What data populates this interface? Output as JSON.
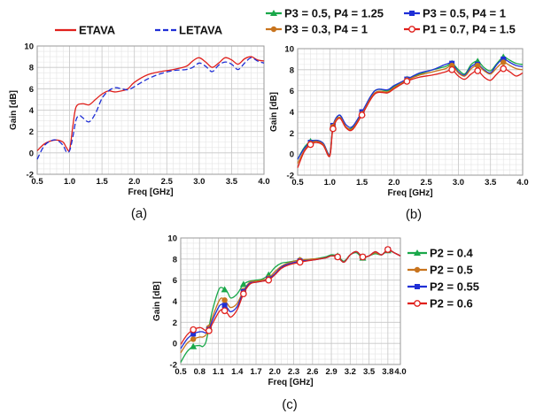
{
  "colors": {
    "red": "#e0201c",
    "blue": "#1f2fd6",
    "green": "#1aa84a",
    "orange": "#c8741e",
    "navy": "#1a1f9c"
  },
  "chart_data": [
    {
      "type": "line",
      "panel": "(a)",
      "xlabel": "Freq [GHz]",
      "ylabel": "Gain [dB]",
      "xlim": [
        0.5,
        4.0
      ],
      "ylim": [
        -2,
        10
      ],
      "xticks": [
        "0.5",
        "1.0",
        "1.5",
        "2.0",
        "2.5",
        "3.0",
        "3.5",
        "4.0"
      ],
      "yticks": [
        "-2",
        "0",
        "2",
        "4",
        "6",
        "8",
        "10"
      ],
      "grid": true,
      "legend_position": "top (above plot)",
      "series": [
        {
          "name": "ETAVA",
          "color": "#e0201c",
          "dash": "solid",
          "x": [
            0.5,
            0.6,
            0.7,
            0.8,
            0.9,
            0.95,
            1.0,
            1.05,
            1.1,
            1.2,
            1.3,
            1.4,
            1.5,
            1.6,
            1.7,
            1.8,
            1.9,
            2.0,
            2.2,
            2.4,
            2.6,
            2.8,
            2.9,
            3.0,
            3.1,
            3.2,
            3.3,
            3.4,
            3.5,
            3.6,
            3.7,
            3.8,
            3.9,
            4.0
          ],
          "y": [
            0.2,
            0.8,
            1.1,
            1.2,
            1.0,
            0.5,
            0.3,
            2.5,
            4.3,
            4.6,
            4.5,
            5.0,
            5.5,
            5.8,
            5.7,
            5.8,
            6.0,
            6.6,
            7.3,
            7.6,
            7.8,
            8.1,
            8.6,
            8.9,
            8.5,
            8.0,
            8.4,
            8.9,
            8.7,
            8.3,
            8.8,
            9.0,
            8.7,
            8.6
          ]
        },
        {
          "name": "LETAVA",
          "color": "#1f2fd6",
          "dash": "dashed",
          "x": [
            0.5,
            0.6,
            0.7,
            0.8,
            0.9,
            0.95,
            1.0,
            1.05,
            1.1,
            1.15,
            1.2,
            1.3,
            1.4,
            1.5,
            1.6,
            1.7,
            1.8,
            1.9,
            2.0,
            2.2,
            2.4,
            2.6,
            2.8,
            2.9,
            3.0,
            3.1,
            3.2,
            3.3,
            3.4,
            3.5,
            3.6,
            3.7,
            3.8,
            3.9,
            4.0
          ],
          "y": [
            -0.6,
            0.6,
            1.1,
            1.2,
            0.7,
            0.1,
            0.2,
            1.5,
            3.1,
            3.5,
            3.3,
            2.9,
            3.7,
            5.1,
            5.8,
            6.1,
            6.0,
            5.9,
            6.2,
            6.9,
            7.4,
            7.7,
            7.8,
            8.0,
            8.4,
            8.1,
            7.6,
            8.2,
            8.5,
            8.3,
            7.8,
            8.4,
            8.9,
            8.6,
            8.4
          ]
        }
      ]
    },
    {
      "type": "line",
      "panel": "(b)",
      "xlabel": "Freq [GHz]",
      "ylabel": "Gain [dB]",
      "xlim": [
        0.5,
        4.0
      ],
      "ylim": [
        -2,
        10
      ],
      "xticks": [
        "0.5",
        "1.0",
        "1.5",
        "2.0",
        "2.5",
        "3.0",
        "3.5",
        "4.0"
      ],
      "yticks": [
        "-2",
        "0",
        "2",
        "4",
        "6",
        "8",
        "10"
      ],
      "grid": true,
      "legend_position": "top (above plot, two rows)",
      "series": [
        {
          "name": "P3 = 0.5, P4 = 1.25",
          "color": "#1aa84a",
          "marker": "triangle",
          "x": [
            0.5,
            0.6,
            0.7,
            0.8,
            0.9,
            1.0,
            1.05,
            1.15,
            1.25,
            1.35,
            1.5,
            1.7,
            1.9,
            2.0,
            2.2,
            2.4,
            2.6,
            2.8,
            2.9,
            3.0,
            3.1,
            3.2,
            3.3,
            3.4,
            3.5,
            3.6,
            3.7,
            3.8,
            3.9,
            4.0
          ],
          "y": [
            -0.5,
            0.6,
            1.2,
            1.3,
            1.0,
            0.0,
            2.5,
            3.7,
            2.6,
            2.5,
            3.9,
            6.0,
            6.0,
            6.4,
            7.1,
            7.6,
            8.0,
            8.3,
            8.6,
            8.0,
            7.6,
            8.5,
            8.8,
            8.2,
            7.9,
            8.6,
            9.2,
            8.9,
            8.6,
            8.5
          ]
        },
        {
          "name": "P3 = 0.5, P4 = 1",
          "color": "#1f2fd6",
          "marker": "square",
          "x": [
            0.5,
            0.6,
            0.7,
            0.8,
            0.9,
            1.0,
            1.05,
            1.15,
            1.25,
            1.35,
            1.5,
            1.7,
            1.9,
            2.0,
            2.2,
            2.4,
            2.6,
            2.8,
            2.9,
            3.0,
            3.1,
            3.2,
            3.3,
            3.4,
            3.5,
            3.6,
            3.7,
            3.8,
            3.9,
            4.0
          ],
          "y": [
            -0.5,
            0.5,
            1.1,
            1.3,
            1.0,
            0.0,
            2.7,
            3.7,
            2.8,
            2.6,
            4.0,
            6.0,
            6.1,
            6.5,
            7.1,
            7.7,
            8.0,
            8.5,
            8.6,
            7.8,
            7.5,
            8.3,
            8.5,
            8.0,
            7.7,
            8.5,
            9.0,
            8.7,
            8.4,
            8.3
          ]
        },
        {
          "name": "P3 = 0.3, P4 = 1",
          "color": "#c8741e",
          "marker": "circle",
          "x": [
            0.5,
            0.6,
            0.7,
            0.8,
            0.9,
            1.0,
            1.05,
            1.15,
            1.25,
            1.35,
            1.5,
            1.7,
            1.9,
            2.0,
            2.2,
            2.4,
            2.6,
            2.8,
            2.9,
            3.0,
            3.1,
            3.2,
            3.3,
            3.4,
            3.5,
            3.6,
            3.7,
            3.8,
            3.9,
            4.0
          ],
          "y": [
            -0.9,
            0.3,
            1.0,
            1.2,
            0.9,
            -0.1,
            2.6,
            3.5,
            2.6,
            2.4,
            3.8,
            5.8,
            5.9,
            6.3,
            7.0,
            7.5,
            7.8,
            8.1,
            8.4,
            7.7,
            7.4,
            8.1,
            8.4,
            7.9,
            7.6,
            8.2,
            8.7,
            8.4,
            8.1,
            8.0
          ]
        },
        {
          "name": "P1 = 0.7, P4 = 1.5",
          "color": "#e0201c",
          "marker": "circle-open",
          "x": [
            0.5,
            0.6,
            0.7,
            0.8,
            0.9,
            1.0,
            1.05,
            1.15,
            1.25,
            1.35,
            1.5,
            1.7,
            1.9,
            2.0,
            2.2,
            2.4,
            2.6,
            2.8,
            2.9,
            3.0,
            3.1,
            3.2,
            3.3,
            3.4,
            3.5,
            3.6,
            3.7,
            3.8,
            3.9,
            4.0
          ],
          "y": [
            -1.3,
            0.2,
            0.9,
            1.1,
            0.8,
            -0.2,
            2.4,
            3.4,
            2.5,
            2.3,
            3.7,
            5.7,
            5.8,
            6.2,
            6.9,
            7.3,
            7.5,
            7.8,
            8.0,
            7.4,
            7.1,
            7.6,
            7.9,
            7.3,
            7.0,
            7.6,
            8.1,
            7.8,
            7.4,
            7.7
          ]
        }
      ]
    },
    {
      "type": "line",
      "panel": "(c)",
      "xlabel": "Freq [GHz]",
      "ylabel": "Gain [dB]",
      "xlim": [
        0.5,
        4.0
      ],
      "ylim": [
        -2,
        10
      ],
      "xticks": [
        "0.5",
        "0.8",
        "1.1",
        "1.4",
        "1.7",
        "2.0",
        "2.3",
        "2.6",
        "2.9",
        "3.2",
        "3.5",
        "3.8",
        "4.0"
      ],
      "yticks": [
        "-2",
        "0",
        "2",
        "4",
        "6",
        "8",
        "10"
      ],
      "grid": true,
      "legend_position": "right",
      "series": [
        {
          "name": "P2 = 0.4",
          "color": "#1aa84a",
          "marker": "triangle",
          "x": [
            0.5,
            0.6,
            0.7,
            0.8,
            0.85,
            0.9,
            0.95,
            1.0,
            1.1,
            1.15,
            1.2,
            1.25,
            1.3,
            1.4,
            1.5,
            1.6,
            1.7,
            1.8,
            1.9,
            2.0,
            2.1,
            2.2,
            2.4,
            2.6,
            2.8,
            2.9,
            3.0,
            3.1,
            3.2,
            3.3,
            3.4,
            3.5,
            3.6,
            3.7,
            3.8,
            3.9,
            4.0
          ],
          "y": [
            -1.8,
            -0.8,
            -0.3,
            -0.2,
            -0.3,
            0.1,
            1.5,
            3.0,
            5.0,
            5.3,
            5.1,
            4.8,
            4.3,
            4.7,
            5.6,
            5.9,
            6.0,
            6.1,
            6.5,
            7.2,
            7.6,
            7.7,
            7.9,
            8.0,
            8.2,
            8.4,
            8.3,
            7.8,
            8.4,
            8.6,
            8.1,
            8.3,
            8.5,
            8.4,
            8.8,
            8.6,
            8.3
          ]
        },
        {
          "name": "P2 = 0.5",
          "color": "#c8741e",
          "marker": "circle",
          "x": [
            0.5,
            0.6,
            0.7,
            0.8,
            0.85,
            0.9,
            0.95,
            1.0,
            1.1,
            1.15,
            1.2,
            1.25,
            1.3,
            1.4,
            1.5,
            1.6,
            1.7,
            1.8,
            1.9,
            2.0,
            2.1,
            2.2,
            2.4,
            2.6,
            2.8,
            2.9,
            3.0,
            3.1,
            3.2,
            3.3,
            3.4,
            3.5,
            3.6,
            3.7,
            3.8,
            3.9,
            4.0
          ],
          "y": [
            -0.9,
            0.0,
            0.4,
            0.6,
            0.6,
            0.8,
            1.5,
            2.4,
            3.9,
            4.3,
            4.1,
            3.7,
            3.4,
            3.8,
            5.0,
            5.8,
            5.9,
            6.0,
            6.2,
            6.8,
            7.3,
            7.6,
            7.9,
            8.0,
            8.1,
            8.3,
            8.2,
            7.7,
            8.4,
            8.7,
            8.2,
            8.3,
            8.6,
            8.4,
            8.9,
            8.6,
            8.3
          ]
        },
        {
          "name": "P2 = 0.55",
          "color": "#1f2fd6",
          "marker": "square",
          "x": [
            0.5,
            0.6,
            0.7,
            0.8,
            0.85,
            0.9,
            0.95,
            1.0,
            1.1,
            1.15,
            1.2,
            1.25,
            1.3,
            1.4,
            1.5,
            1.6,
            1.7,
            1.8,
            1.9,
            2.0,
            2.1,
            2.2,
            2.4,
            2.6,
            2.8,
            2.9,
            3.0,
            3.1,
            3.2,
            3.3,
            3.4,
            3.5,
            3.6,
            3.7,
            3.8,
            3.9,
            4.0
          ],
          "y": [
            -0.5,
            0.4,
            0.9,
            1.1,
            1.1,
            1.0,
            1.3,
            2.1,
            3.4,
            3.7,
            3.6,
            3.3,
            3.0,
            3.5,
            4.9,
            5.7,
            5.8,
            5.9,
            6.1,
            6.6,
            7.2,
            7.5,
            7.8,
            7.9,
            8.1,
            8.3,
            8.2,
            7.7,
            8.4,
            8.7,
            8.2,
            8.3,
            8.7,
            8.4,
            8.9,
            8.6,
            8.3
          ]
        },
        {
          "name": "P2 = 0.6",
          "color": "#e0201c",
          "marker": "circle-open",
          "x": [
            0.5,
            0.6,
            0.7,
            0.8,
            0.85,
            0.9,
            0.95,
            1.0,
            1.1,
            1.15,
            1.2,
            1.25,
            1.3,
            1.4,
            1.5,
            1.6,
            1.7,
            1.8,
            1.9,
            2.0,
            2.1,
            2.2,
            2.4,
            2.6,
            2.8,
            2.9,
            3.0,
            3.1,
            3.2,
            3.3,
            3.4,
            3.5,
            3.6,
            3.7,
            3.8,
            3.9,
            4.0
          ],
          "y": [
            -0.1,
            0.8,
            1.3,
            1.5,
            1.4,
            1.2,
            1.2,
            1.8,
            2.9,
            3.2,
            3.1,
            2.8,
            2.5,
            3.2,
            4.7,
            5.6,
            5.8,
            5.9,
            6.0,
            6.5,
            7.1,
            7.4,
            7.7,
            7.9,
            8.1,
            8.3,
            8.2,
            7.7,
            8.4,
            8.7,
            8.2,
            8.3,
            8.7,
            8.4,
            8.9,
            8.6,
            8.3
          ]
        }
      ]
    }
  ],
  "captions": [
    "(a)",
    "(b)",
    "(c)"
  ]
}
